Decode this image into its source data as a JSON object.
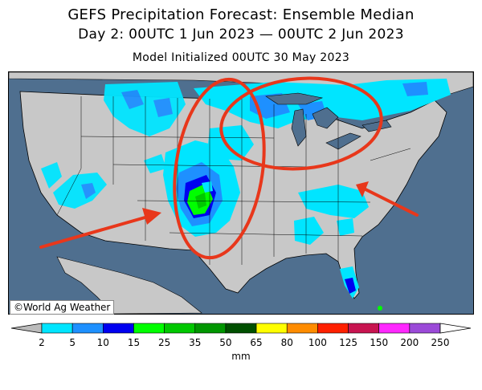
{
  "header": {
    "title": "GEFS Precipitation Forecast: Ensemble Median",
    "subtitle": "Day 2: 00UTC 1 Jun 2023 — 00UTC 2 Jun 2023",
    "initialized": "Model Initialized 00UTC 30 May 2023"
  },
  "map": {
    "credit": "©World Ag Weather",
    "colors": {
      "ocean": "#4f6f8f",
      "land": "#c8c8c8",
      "border": "#000000",
      "annotation": "#e8371b"
    }
  },
  "legend": {
    "unit": "mm",
    "ticks": [
      "2",
      "5",
      "10",
      "15",
      "25",
      "35",
      "50",
      "65",
      "80",
      "100",
      "125",
      "150",
      "200",
      "250"
    ],
    "colors": [
      "#00e5ff",
      "#1e90ff",
      "#0000f0",
      "#00ff00",
      "#00c800",
      "#009600",
      "#005000",
      "#ffff00",
      "#ff8c00",
      "#ff2000",
      "#c81450",
      "#ff28ff",
      "#9b4ad8"
    ]
  }
}
